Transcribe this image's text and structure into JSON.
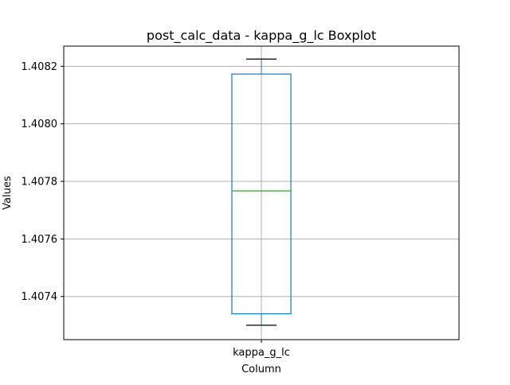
{
  "chart_data": {
    "type": "box",
    "title": "post_calc_data - kappa_g_lc Boxplot",
    "xlabel": "Column",
    "ylabel": "Values",
    "categories": [
      "kappa_g_lc"
    ],
    "ylim": [
      1.40725,
      1.40827
    ],
    "yticks": [
      1.4074,
      1.4076,
      1.4078,
      1.408,
      1.4082
    ],
    "ytick_labels": [
      "1.4074",
      "1.4076",
      "1.4078",
      "1.4080",
      "1.4082"
    ],
    "grid": true,
    "boxes": [
      {
        "category": "kappa_g_lc",
        "whisker_low": 1.4073,
        "q1": 1.40734,
        "median": 1.407767,
        "q3": 1.408173,
        "whisker_high": 1.408225
      }
    ],
    "colors": {
      "box": "#1f77b4",
      "median": "#2ca02c",
      "whisker": "#000000",
      "grid": "#b0b0b0",
      "axes": "#000000"
    }
  }
}
